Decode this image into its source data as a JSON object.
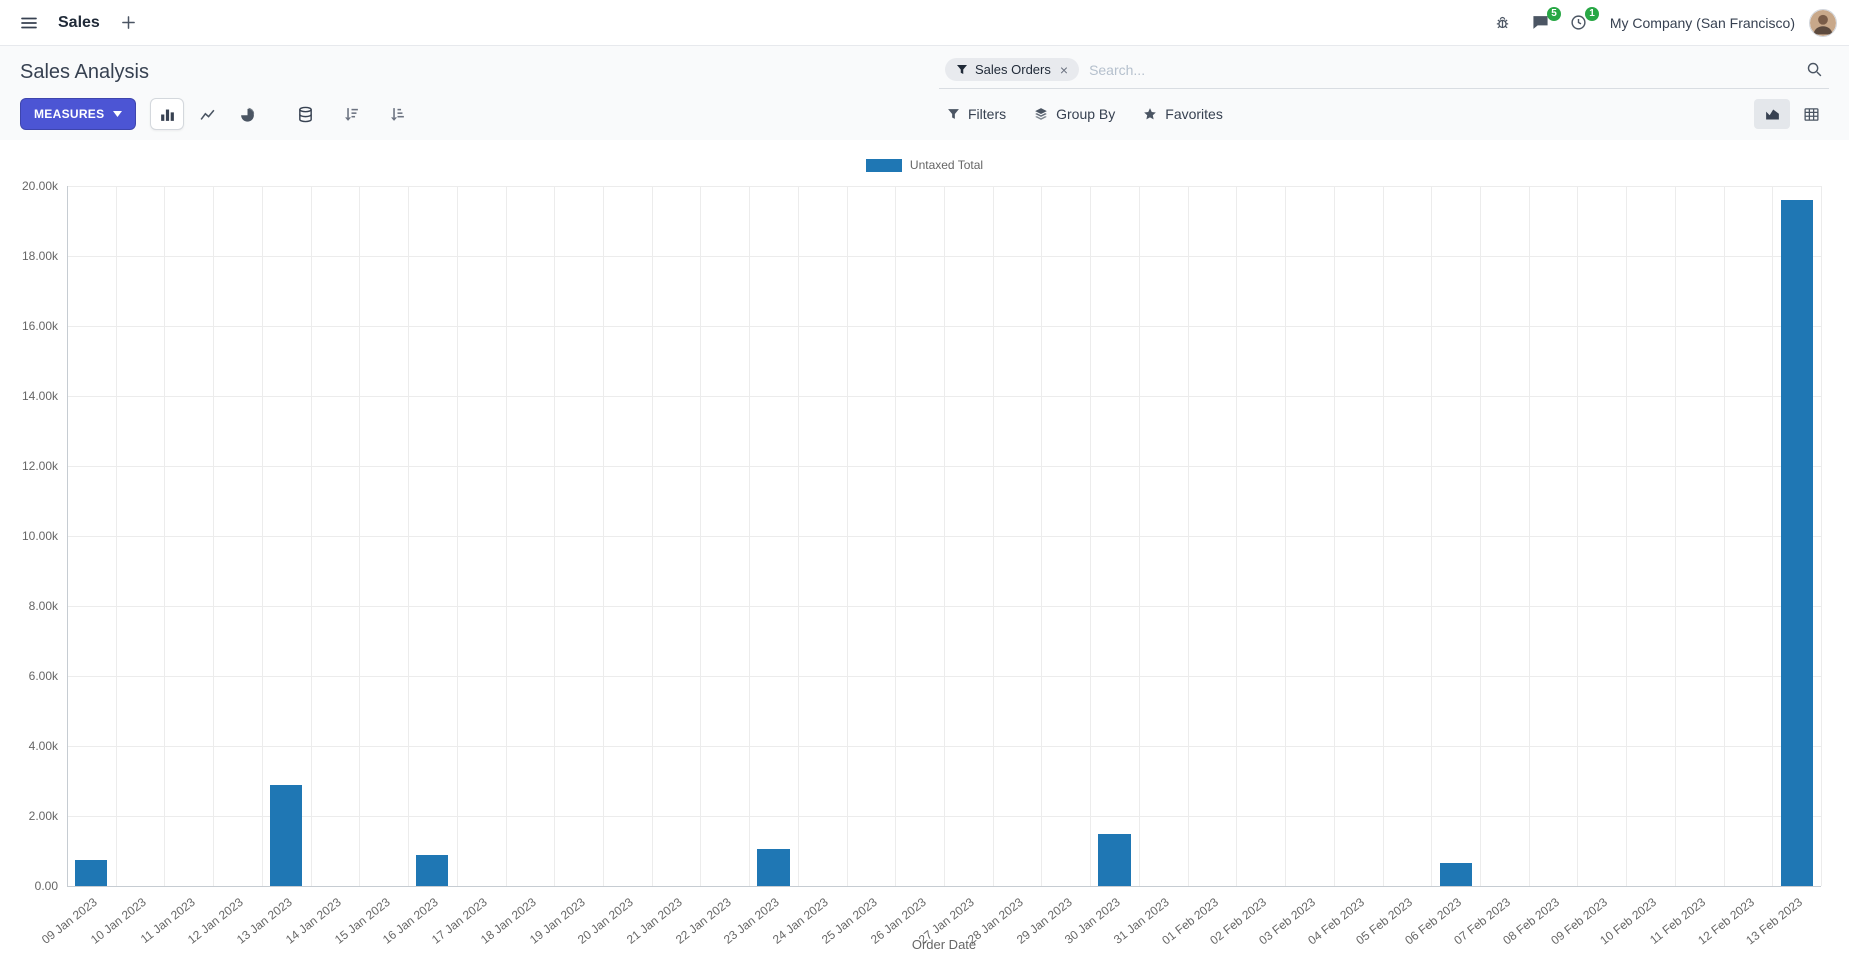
{
  "navbar": {
    "app_name": "Sales",
    "company_name": "My Company (San Francisco)",
    "messages_badge": "5",
    "activities_badge": "1"
  },
  "control_panel": {
    "title": "Sales Analysis",
    "measures_label": "MEASURES",
    "search": {
      "facet_label": "Sales Orders",
      "facet_remove": "×",
      "placeholder": "Search..."
    },
    "filters_label": "Filters",
    "group_by_label": "Group By",
    "favorites_label": "Favorites"
  },
  "chart_data": {
    "type": "bar",
    "title": "",
    "xlabel": "Order Date",
    "ylabel": "",
    "ylim": [
      0,
      20000
    ],
    "grid": true,
    "legend_position": "top",
    "legend": [
      {
        "label": "Untaxed Total",
        "color": "#1f77b4"
      }
    ],
    "bar_color": "#1f77b4",
    "ytick_labels": [
      "0.00",
      "2.00k",
      "4.00k",
      "6.00k",
      "8.00k",
      "10.00k",
      "12.00k",
      "14.00k",
      "16.00k",
      "18.00k",
      "20.00k"
    ],
    "categories": [
      "09 Jan 2023",
      "10 Jan 2023",
      "11 Jan 2023",
      "12 Jan 2023",
      "13 Jan 2023",
      "14 Jan 2023",
      "15 Jan 2023",
      "16 Jan 2023",
      "17 Jan 2023",
      "18 Jan 2023",
      "19 Jan 2023",
      "20 Jan 2023",
      "21 Jan 2023",
      "22 Jan 2023",
      "23 Jan 2023",
      "24 Jan 2023",
      "25 Jan 2023",
      "26 Jan 2023",
      "27 Jan 2023",
      "28 Jan 2023",
      "29 Jan 2023",
      "30 Jan 2023",
      "31 Jan 2023",
      "01 Feb 2023",
      "02 Feb 2023",
      "03 Feb 2023",
      "04 Feb 2023",
      "05 Feb 2023",
      "06 Feb 2023",
      "07 Feb 2023",
      "08 Feb 2023",
      "09 Feb 2023",
      "10 Feb 2023",
      "11 Feb 2023",
      "12 Feb 2023",
      "13 Feb 2023"
    ],
    "values": [
      750,
      0,
      0,
      0,
      2900,
      0,
      0,
      900,
      0,
      0,
      0,
      0,
      0,
      0,
      1050,
      0,
      0,
      0,
      0,
      0,
      0,
      1500,
      0,
      0,
      0,
      0,
      0,
      0,
      650,
      0,
      0,
      0,
      0,
      0,
      0,
      19600
    ]
  },
  "colors": {
    "primary_button": "#4C55D4",
    "bar": "#1f77b4",
    "badge": "#28a745"
  }
}
